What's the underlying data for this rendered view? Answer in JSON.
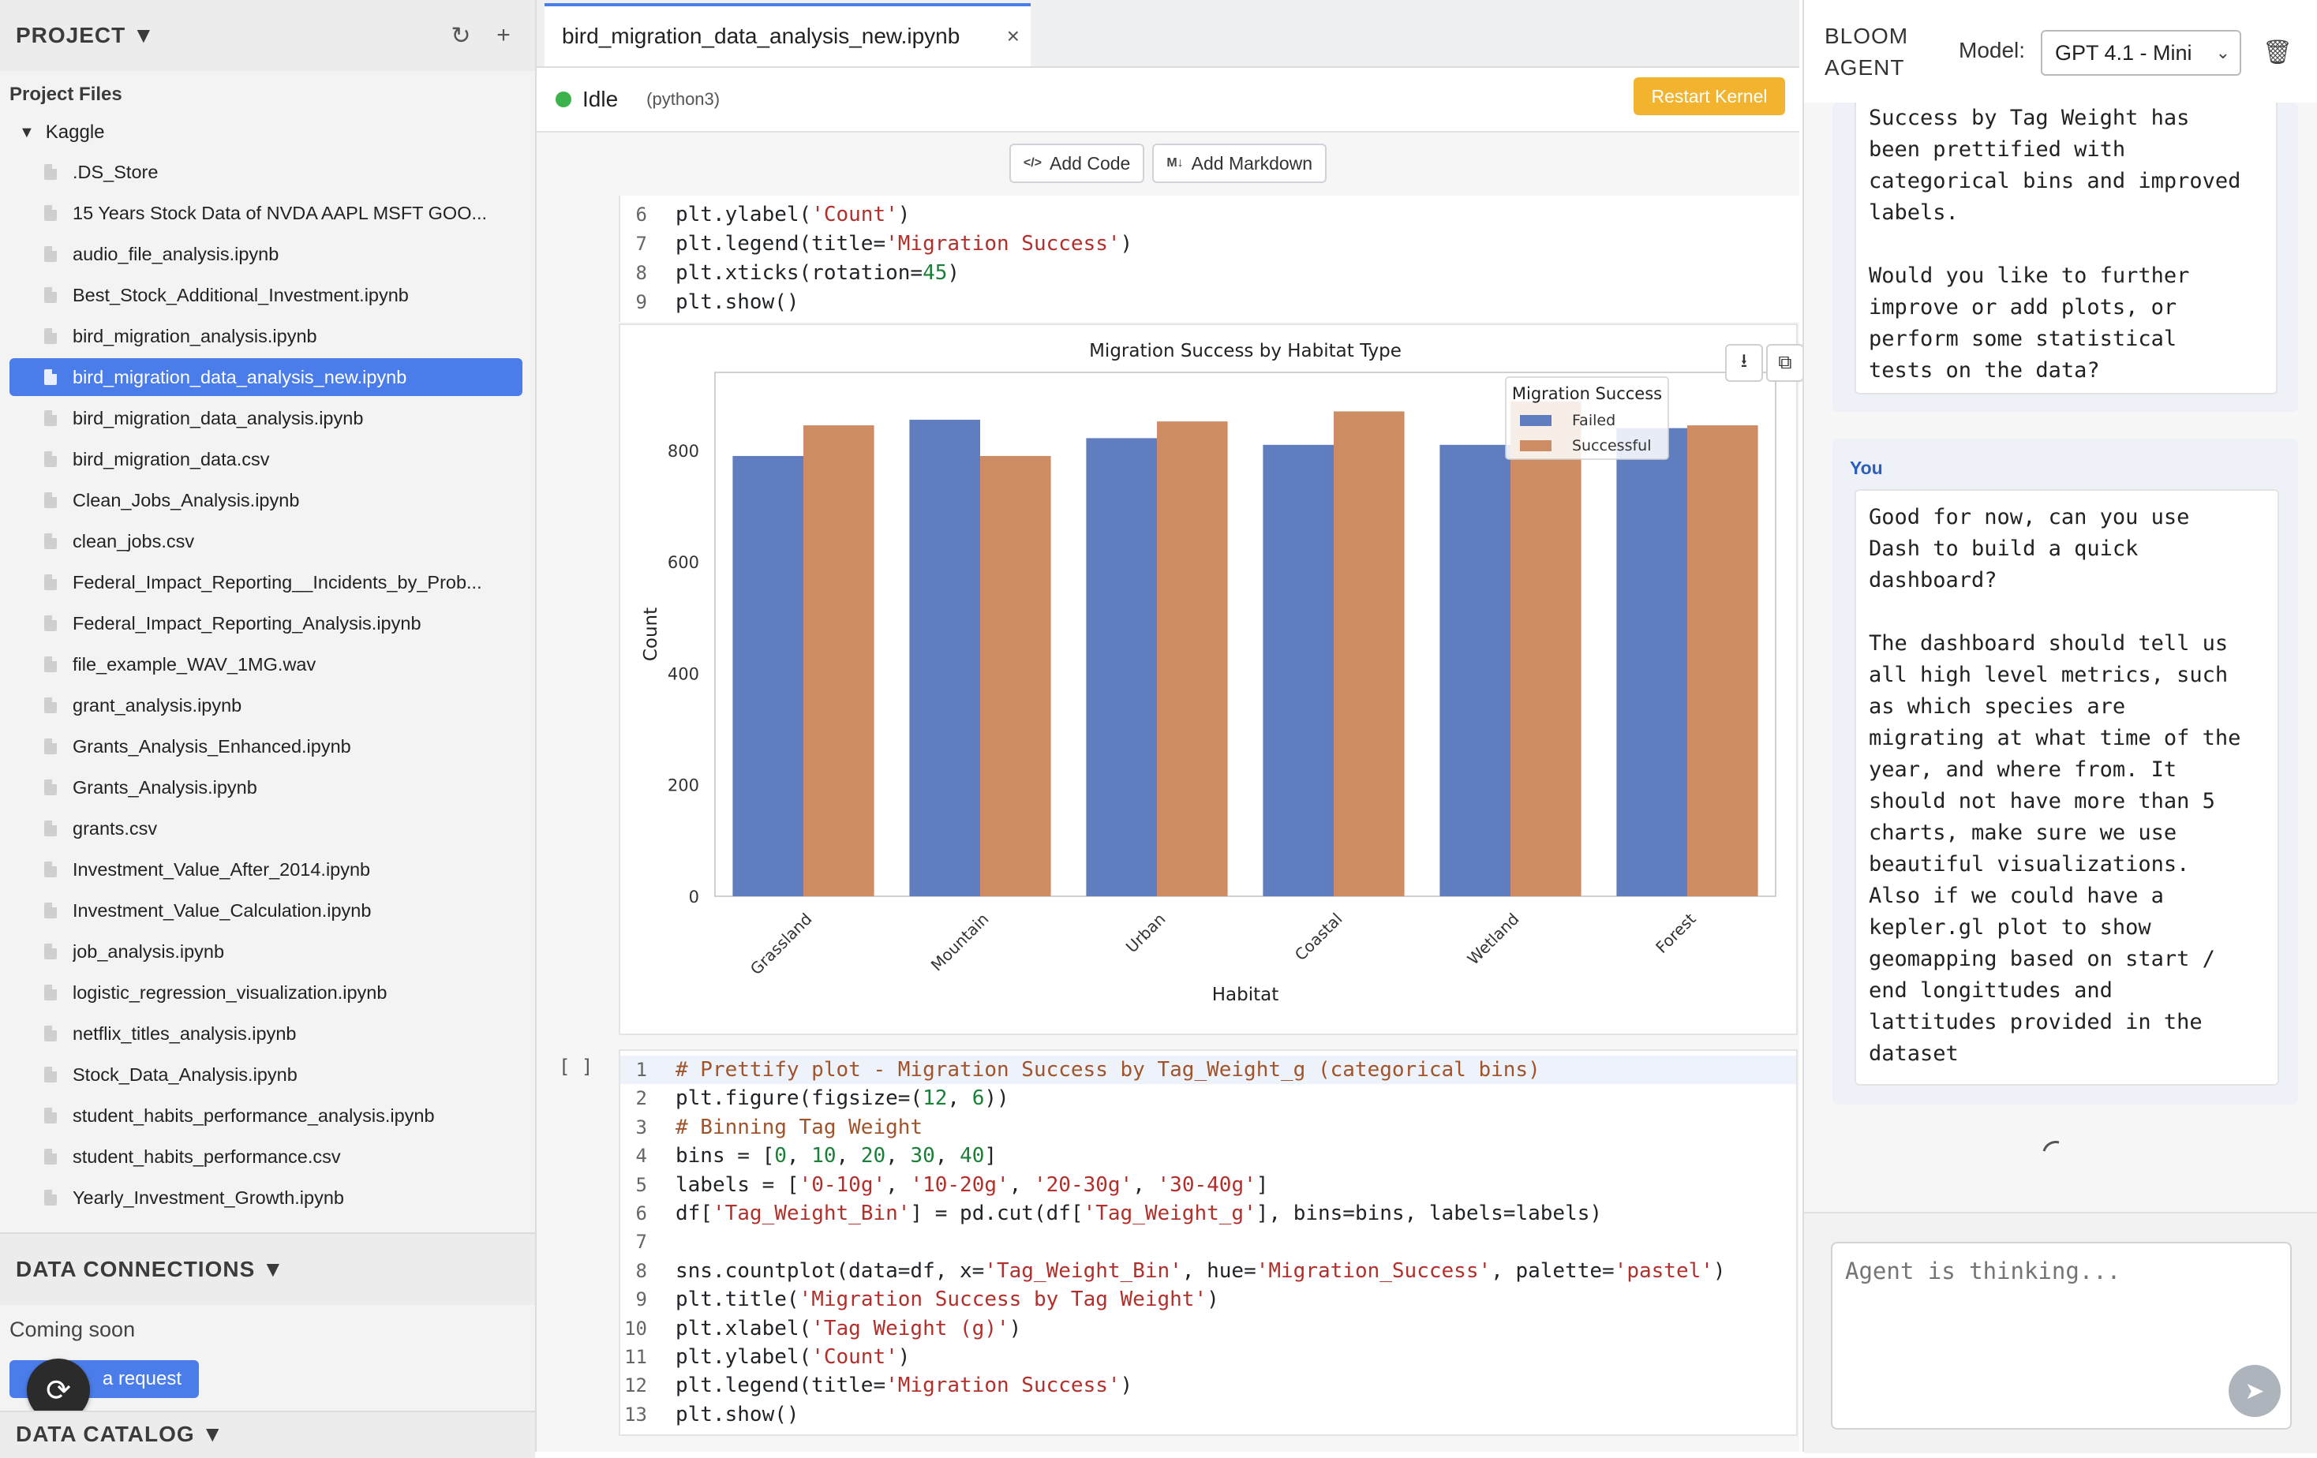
{
  "sidebar": {
    "title": "PROJECT ▼",
    "refresh_icon": "↻",
    "add_icon": "+",
    "files_title": "Project Files",
    "folder": "Kaggle",
    "files": [
      ".DS_Store",
      "15 Years Stock Data of NVDA AAPL MSFT GOO...",
      "audio_file_analysis.ipynb",
      "Best_Stock_Additional_Investment.ipynb",
      "bird_migration_analysis.ipynb",
      "bird_migration_data_analysis_new.ipynb",
      "bird_migration_data_analysis.ipynb",
      "bird_migration_data.csv",
      "Clean_Jobs_Analysis.ipynb",
      "clean_jobs.csv",
      "Federal_Impact_Reporting__Incidents_by_Prob...",
      "Federal_Impact_Reporting_Analysis.ipynb",
      "file_example_WAV_1MG.wav",
      "grant_analysis.ipynb",
      "Grants_Analysis_Enhanced.ipynb",
      "Grants_Analysis.ipynb",
      "grants.csv",
      "Investment_Value_After_2014.ipynb",
      "Investment_Value_Calculation.ipynb",
      "job_analysis.ipynb",
      "logistic_regression_visualization.ipynb",
      "netflix_titles_analysis.ipynb",
      "Stock_Data_Analysis.ipynb",
      "student_habits_performance_analysis.ipynb",
      "student_habits_performance.csv",
      "Yearly_Investment_Growth.ipynb"
    ],
    "active_index": 5,
    "data_connections": "DATA CONNECTIONS ▼",
    "coming_soon": "Coming soon",
    "request_button": "a request",
    "data_catalog": "DATA CATALOG ▼"
  },
  "notebook": {
    "tab_title": "bird_migration_data_analysis_new.ipynb",
    "tab_close": "×",
    "status": "Idle",
    "kernel": "(python3)",
    "restart_label": "Restart Kernel",
    "add_code": "Add Code",
    "add_markdown": "Add Markdown",
    "cell1_lines": [
      {
        "n": "6",
        "parts": [
          [
            "plt.ylabel(",
            ""
          ],
          [
            "'Count'",
            "str"
          ],
          [
            ")",
            ""
          ]
        ]
      },
      {
        "n": "7",
        "parts": [
          [
            "plt.legend(title=",
            ""
          ],
          [
            "'Migration Success'",
            "str"
          ],
          [
            ")",
            ""
          ]
        ]
      },
      {
        "n": "8",
        "parts": [
          [
            "plt.xticks(rotation=",
            ""
          ],
          [
            "45",
            "num"
          ],
          [
            ")",
            ""
          ]
        ]
      },
      {
        "n": "9",
        "parts": [
          [
            "plt.show()",
            ""
          ]
        ]
      }
    ],
    "cell2_prompt": "[ ]",
    "cell2_lines": [
      {
        "n": "1",
        "parts": [
          [
            "# Prettify plot - Migration Success by Tag_Weight_g (categorical bins)",
            "com"
          ]
        ]
      },
      {
        "n": "2",
        "parts": [
          [
            "plt.figure(figsize=(",
            ""
          ],
          [
            "12",
            "num"
          ],
          [
            ", ",
            ""
          ],
          [
            "6",
            "num"
          ],
          [
            "))",
            ""
          ]
        ]
      },
      {
        "n": "3",
        "parts": [
          [
            "# Binning Tag Weight",
            "com"
          ]
        ]
      },
      {
        "n": "4",
        "parts": [
          [
            "bins = [",
            ""
          ],
          [
            "0",
            "num"
          ],
          [
            ", ",
            ""
          ],
          [
            "10",
            "num"
          ],
          [
            ", ",
            ""
          ],
          [
            "20",
            "num"
          ],
          [
            ", ",
            ""
          ],
          [
            "30",
            "num"
          ],
          [
            ", ",
            ""
          ],
          [
            "40",
            "num"
          ],
          [
            "]",
            ""
          ]
        ]
      },
      {
        "n": "5",
        "parts": [
          [
            "labels = [",
            ""
          ],
          [
            "'0-10g'",
            "str"
          ],
          [
            ", ",
            ""
          ],
          [
            "'10-20g'",
            "str"
          ],
          [
            ", ",
            ""
          ],
          [
            "'20-30g'",
            "str"
          ],
          [
            ", ",
            ""
          ],
          [
            "'30-40g'",
            "str"
          ],
          [
            "]",
            ""
          ]
        ]
      },
      {
        "n": "6",
        "parts": [
          [
            "df[",
            ""
          ],
          [
            "'Tag_Weight_Bin'",
            "str"
          ],
          [
            "] = pd.cut(df[",
            ""
          ],
          [
            "'Tag_Weight_g'",
            "str"
          ],
          [
            "], bins=bins, labels=labels)",
            ""
          ]
        ]
      },
      {
        "n": "7",
        "parts": [
          [
            "",
            ""
          ]
        ]
      },
      {
        "n": "8",
        "parts": [
          [
            "sns.countplot(data=df, x=",
            ""
          ],
          [
            "'Tag_Weight_Bin'",
            "str"
          ],
          [
            ", hue=",
            ""
          ],
          [
            "'Migration_Success'",
            "str"
          ],
          [
            ", palette=",
            ""
          ],
          [
            "'pastel'",
            "str"
          ],
          [
            ")",
            ""
          ]
        ]
      },
      {
        "n": "9",
        "parts": [
          [
            "plt.title(",
            ""
          ],
          [
            "'Migration Success by Tag Weight'",
            "str"
          ],
          [
            ")",
            ""
          ]
        ]
      },
      {
        "n": "10",
        "parts": [
          [
            "plt.xlabel(",
            ""
          ],
          [
            "'Tag Weight (g)'",
            "str"
          ],
          [
            ")",
            ""
          ]
        ]
      },
      {
        "n": "11",
        "parts": [
          [
            "plt.ylabel(",
            ""
          ],
          [
            "'Count'",
            "str"
          ],
          [
            ")",
            ""
          ]
        ]
      },
      {
        "n": "12",
        "parts": [
          [
            "plt.legend(title=",
            ""
          ],
          [
            "'Migration Success'",
            "str"
          ],
          [
            ")",
            ""
          ]
        ]
      },
      {
        "n": "13",
        "parts": [
          [
            "plt.show()",
            ""
          ]
        ]
      }
    ]
  },
  "chart_data": {
    "type": "bar",
    "title": "Migration Success by Habitat Type",
    "xlabel": "Habitat",
    "ylabel": "Count",
    "categories": [
      "Grassland",
      "Mountain",
      "Urban",
      "Coastal",
      "Wetland",
      "Forest"
    ],
    "series": [
      {
        "name": "Failed",
        "color": "#5f7dbf",
        "values": [
          790,
          855,
          822,
          810,
          810,
          840
        ]
      },
      {
        "name": "Successful",
        "color": "#cd8c63",
        "values": [
          845,
          790,
          852,
          870,
          888,
          845
        ]
      }
    ],
    "ylim": [
      0,
      940
    ],
    "yticks": [
      0,
      200,
      400,
      600,
      800
    ],
    "legend_title": "Migration Success",
    "legend_position": "top-right",
    "grid": false
  },
  "agent": {
    "title_line1": "BLOOM",
    "title_line2": "AGENT",
    "model_label": "Model:",
    "model_value": "GPT 4.1 - Mini",
    "agent_message": "Success by Tag Weight has\nbeen prettified with\ncategorical bins and improved\nlabels.\n\nWould you like to further\nimprove or add plots, or\nperform some statistical\ntests on the data?",
    "you_label": "You",
    "user_message": "Good for now, can you use\nDash to build a quick\ndashboard?\n\nThe dashboard should tell us\nall high level metrics, such\nas which species are\nmigrating at what time of the\nyear, and where from. It\nshould not have more than 5\ncharts, make sure we use\nbeautiful visualizations.\nAlso if we could have a\nkepler.gl plot to show\ngeomapping based on start /\nend longittudes and\nlattitudes provided in the\ndataset",
    "input_placeholder": "Agent is thinking..."
  }
}
